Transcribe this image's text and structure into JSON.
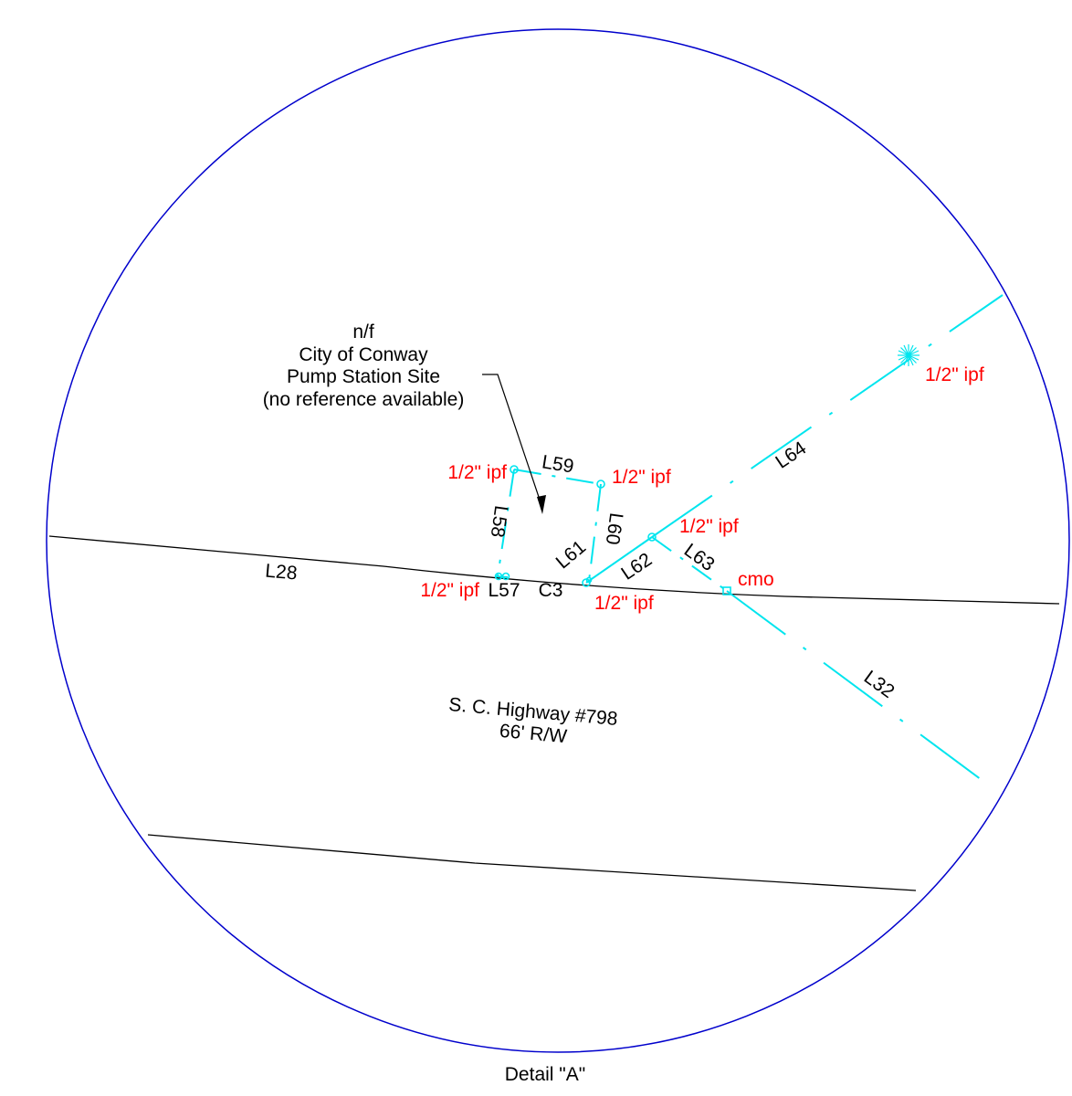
{
  "colors": {
    "boundary": "#0000cc",
    "property_line": "#00e5ee",
    "road_line": "#000000",
    "monument_label": "#ff0000",
    "text": "#000000"
  },
  "parcel_note": {
    "line1": "n/f",
    "line2": "City of Conway",
    "line3": "Pump Station Site",
    "line4": "(no reference available)"
  },
  "line_labels": {
    "l28": "L28",
    "l57": "L57",
    "c3": "C3",
    "l58": "L58",
    "l59": "L59",
    "l60": "L60",
    "l61": "L61",
    "l62": "L62",
    "l63": "L63",
    "l64": "L64",
    "l32": "L32"
  },
  "monuments": {
    "ipf_top_right": "1/2\" ipf",
    "ipf_l59_left": "1/2\" ipf",
    "ipf_l59_right": "1/2\" ipf",
    "ipf_l63": "1/2\" ipf",
    "ipf_l57": "1/2\" ipf",
    "ipf_c3": "1/2\" ipf",
    "cmo": "cmo"
  },
  "road": {
    "name": "S. C. Highway #798",
    "width": "66' R/W"
  },
  "detail_title": "Detail \"A\""
}
